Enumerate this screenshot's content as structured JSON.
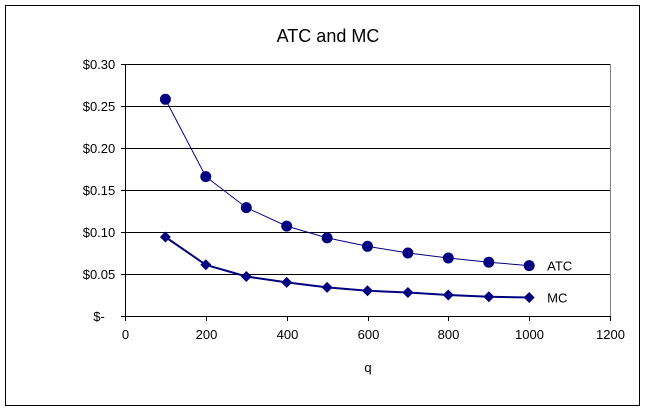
{
  "chart_data": {
    "type": "line",
    "title": "ATC and MC",
    "xlabel": "q",
    "ylabel": "",
    "xlim": [
      0,
      1200
    ],
    "ylim": [
      0,
      0.3
    ],
    "xticks": [
      0,
      200,
      400,
      600,
      800,
      1000,
      1200
    ],
    "xtick_labels": [
      "0",
      "200",
      "400",
      "600",
      "800",
      "1000",
      "1200"
    ],
    "yticks": [
      0,
      0.05,
      0.1,
      0.15,
      0.2,
      0.25,
      0.3
    ],
    "ytick_labels": [
      "$-",
      "$0.05",
      "$0.10",
      "$0.15",
      "$0.20",
      "$0.25",
      "$0.30"
    ],
    "grid": "horizontal",
    "x": [
      100,
      200,
      300,
      400,
      500,
      600,
      700,
      800,
      900,
      1000
    ],
    "series": [
      {
        "name": "ATC",
        "marker": "circle",
        "color": "#000080",
        "values": [
          0.258,
          0.166,
          0.129,
          0.107,
          0.093,
          0.083,
          0.075,
          0.069,
          0.064,
          0.06
        ]
      },
      {
        "name": "MC",
        "marker": "diamond",
        "color": "#000080",
        "values": [
          0.094,
          0.061,
          0.047,
          0.04,
          0.034,
          0.03,
          0.028,
          0.025,
          0.023,
          0.022
        ]
      }
    ]
  }
}
